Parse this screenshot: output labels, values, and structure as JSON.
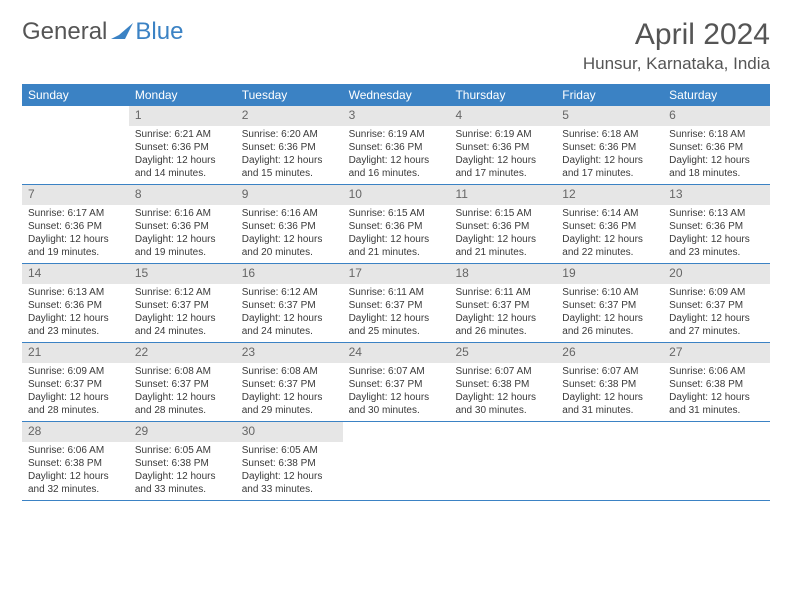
{
  "brand": {
    "general": "General",
    "blue": "Blue"
  },
  "title": {
    "month_year": "April 2024",
    "location": "Hunsur, Karnataka, India"
  },
  "colors": {
    "header_bg": "#3b82c4",
    "header_text": "#ffffff",
    "daynum_bg": "#e6e6e6",
    "daynum_text": "#666666",
    "rule": "#3b82c4",
    "page_bg": "#ffffff",
    "body_text": "#3a3a3a"
  },
  "weekdays": [
    "Sunday",
    "Monday",
    "Tuesday",
    "Wednesday",
    "Thursday",
    "Friday",
    "Saturday"
  ],
  "days": [
    {
      "n": "1",
      "sr": "Sunrise: 6:21 AM",
      "ss": "Sunset: 6:36 PM",
      "dl": "Daylight: 12 hours and 14 minutes."
    },
    {
      "n": "2",
      "sr": "Sunrise: 6:20 AM",
      "ss": "Sunset: 6:36 PM",
      "dl": "Daylight: 12 hours and 15 minutes."
    },
    {
      "n": "3",
      "sr": "Sunrise: 6:19 AM",
      "ss": "Sunset: 6:36 PM",
      "dl": "Daylight: 12 hours and 16 minutes."
    },
    {
      "n": "4",
      "sr": "Sunrise: 6:19 AM",
      "ss": "Sunset: 6:36 PM",
      "dl": "Daylight: 12 hours and 17 minutes."
    },
    {
      "n": "5",
      "sr": "Sunrise: 6:18 AM",
      "ss": "Sunset: 6:36 PM",
      "dl": "Daylight: 12 hours and 17 minutes."
    },
    {
      "n": "6",
      "sr": "Sunrise: 6:18 AM",
      "ss": "Sunset: 6:36 PM",
      "dl": "Daylight: 12 hours and 18 minutes."
    },
    {
      "n": "7",
      "sr": "Sunrise: 6:17 AM",
      "ss": "Sunset: 6:36 PM",
      "dl": "Daylight: 12 hours and 19 minutes."
    },
    {
      "n": "8",
      "sr": "Sunrise: 6:16 AM",
      "ss": "Sunset: 6:36 PM",
      "dl": "Daylight: 12 hours and 19 minutes."
    },
    {
      "n": "9",
      "sr": "Sunrise: 6:16 AM",
      "ss": "Sunset: 6:36 PM",
      "dl": "Daylight: 12 hours and 20 minutes."
    },
    {
      "n": "10",
      "sr": "Sunrise: 6:15 AM",
      "ss": "Sunset: 6:36 PM",
      "dl": "Daylight: 12 hours and 21 minutes."
    },
    {
      "n": "11",
      "sr": "Sunrise: 6:15 AM",
      "ss": "Sunset: 6:36 PM",
      "dl": "Daylight: 12 hours and 21 minutes."
    },
    {
      "n": "12",
      "sr": "Sunrise: 6:14 AM",
      "ss": "Sunset: 6:36 PM",
      "dl": "Daylight: 12 hours and 22 minutes."
    },
    {
      "n": "13",
      "sr": "Sunrise: 6:13 AM",
      "ss": "Sunset: 6:36 PM",
      "dl": "Daylight: 12 hours and 23 minutes."
    },
    {
      "n": "14",
      "sr": "Sunrise: 6:13 AM",
      "ss": "Sunset: 6:36 PM",
      "dl": "Daylight: 12 hours and 23 minutes."
    },
    {
      "n": "15",
      "sr": "Sunrise: 6:12 AM",
      "ss": "Sunset: 6:37 PM",
      "dl": "Daylight: 12 hours and 24 minutes."
    },
    {
      "n": "16",
      "sr": "Sunrise: 6:12 AM",
      "ss": "Sunset: 6:37 PM",
      "dl": "Daylight: 12 hours and 24 minutes."
    },
    {
      "n": "17",
      "sr": "Sunrise: 6:11 AM",
      "ss": "Sunset: 6:37 PM",
      "dl": "Daylight: 12 hours and 25 minutes."
    },
    {
      "n": "18",
      "sr": "Sunrise: 6:11 AM",
      "ss": "Sunset: 6:37 PM",
      "dl": "Daylight: 12 hours and 26 minutes."
    },
    {
      "n": "19",
      "sr": "Sunrise: 6:10 AM",
      "ss": "Sunset: 6:37 PM",
      "dl": "Daylight: 12 hours and 26 minutes."
    },
    {
      "n": "20",
      "sr": "Sunrise: 6:09 AM",
      "ss": "Sunset: 6:37 PM",
      "dl": "Daylight: 12 hours and 27 minutes."
    },
    {
      "n": "21",
      "sr": "Sunrise: 6:09 AM",
      "ss": "Sunset: 6:37 PM",
      "dl": "Daylight: 12 hours and 28 minutes."
    },
    {
      "n": "22",
      "sr": "Sunrise: 6:08 AM",
      "ss": "Sunset: 6:37 PM",
      "dl": "Daylight: 12 hours and 28 minutes."
    },
    {
      "n": "23",
      "sr": "Sunrise: 6:08 AM",
      "ss": "Sunset: 6:37 PM",
      "dl": "Daylight: 12 hours and 29 minutes."
    },
    {
      "n": "24",
      "sr": "Sunrise: 6:07 AM",
      "ss": "Sunset: 6:37 PM",
      "dl": "Daylight: 12 hours and 30 minutes."
    },
    {
      "n": "25",
      "sr": "Sunrise: 6:07 AM",
      "ss": "Sunset: 6:38 PM",
      "dl": "Daylight: 12 hours and 30 minutes."
    },
    {
      "n": "26",
      "sr": "Sunrise: 6:07 AM",
      "ss": "Sunset: 6:38 PM",
      "dl": "Daylight: 12 hours and 31 minutes."
    },
    {
      "n": "27",
      "sr": "Sunrise: 6:06 AM",
      "ss": "Sunset: 6:38 PM",
      "dl": "Daylight: 12 hours and 31 minutes."
    },
    {
      "n": "28",
      "sr": "Sunrise: 6:06 AM",
      "ss": "Sunset: 6:38 PM",
      "dl": "Daylight: 12 hours and 32 minutes."
    },
    {
      "n": "29",
      "sr": "Sunrise: 6:05 AM",
      "ss": "Sunset: 6:38 PM",
      "dl": "Daylight: 12 hours and 33 minutes."
    },
    {
      "n": "30",
      "sr": "Sunrise: 6:05 AM",
      "ss": "Sunset: 6:38 PM",
      "dl": "Daylight: 12 hours and 33 minutes."
    }
  ],
  "layout": {
    "start_weekday_index": 1,
    "typography": {
      "title_pt": 30,
      "location_pt": 17,
      "weekday_pt": 12,
      "daynum_pt": 12,
      "body_pt": 10
    }
  }
}
